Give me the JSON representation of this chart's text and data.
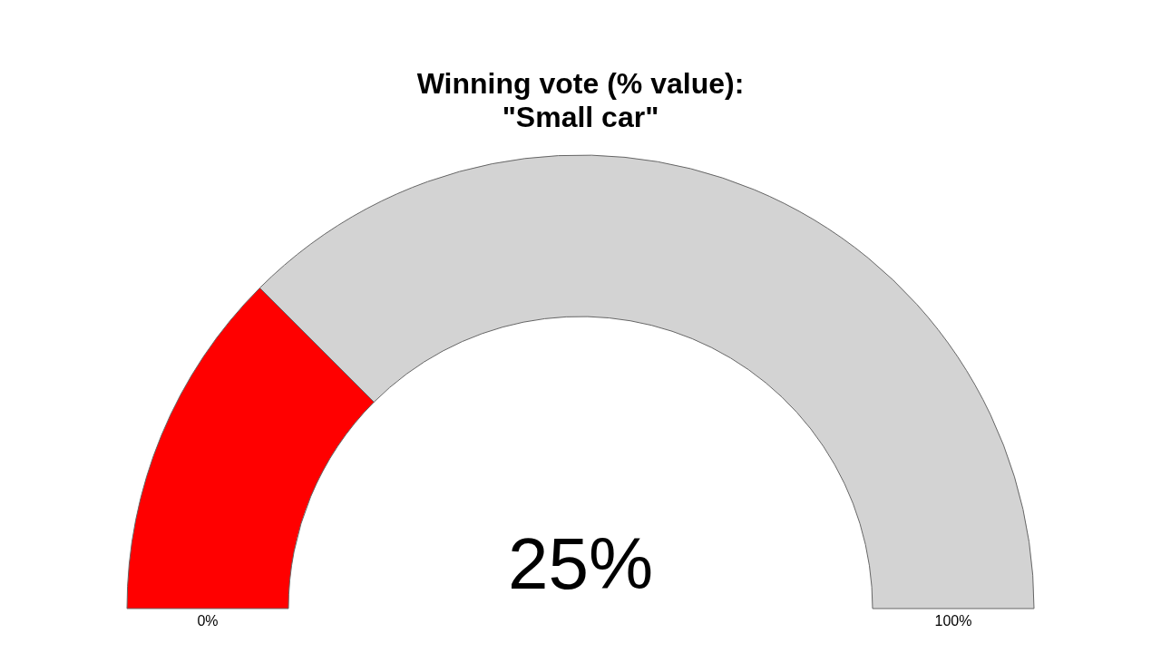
{
  "chart_data": {
    "type": "donut",
    "title": "Winning vote (% value):\n\"Small car\"",
    "categories": [
      null,
      null
    ],
    "values": [
      25,
      75
    ],
    "colors": [
      "#ff0000",
      "#d3d3d3"
    ],
    "annotations": [
      "25%",
      "0%",
      "100%"
    ]
  }
}
